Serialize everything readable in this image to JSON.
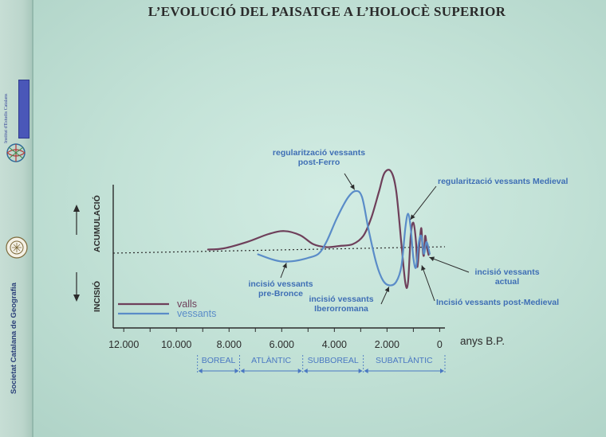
{
  "title": "L’EVOLUCIÓ DEL PAISATGE A L’HOLOCÈ SUPERIOR",
  "sidebar": {
    "society": "Societat Catalana de Geografia"
  },
  "colors": {
    "valls": "#6e3f5a",
    "vessants": "#5a8cc8",
    "axis": "#2b2b2b",
    "annotation": "#3f6fb5",
    "periods": "#4a78c2"
  },
  "chart_data": {
    "type": "line",
    "xlabel": "anys B.P.",
    "x_reversed": true,
    "xlim": [
      12400,
      -200
    ],
    "ylim": [
      -1,
      1
    ],
    "y_up_label": "ACUMULACIÓ",
    "y_down_label": "INCISIÓ",
    "x_ticks": [
      {
        "value": 12000,
        "label": "12.000"
      },
      {
        "value": 10000,
        "label": "10.000"
      },
      {
        "value": 8000,
        "label": "8.000"
      },
      {
        "value": 6000,
        "label": "6.000"
      },
      {
        "value": 4000,
        "label": "4.000"
      },
      {
        "value": 2000,
        "label": "2.000"
      },
      {
        "value": 0,
        "label": "0"
      }
    ],
    "series": [
      {
        "name": "valls",
        "color": "#6e3f5a",
        "points": [
          [
            8800,
            0.02
          ],
          [
            8200,
            0.04
          ],
          [
            7300,
            0.15
          ],
          [
            6500,
            0.28
          ],
          [
            5900,
            0.33
          ],
          [
            5300,
            0.26
          ],
          [
            4800,
            0.11
          ],
          [
            4300,
            0.06
          ],
          [
            3800,
            0.08
          ],
          [
            3300,
            0.11
          ],
          [
            2900,
            0.25
          ],
          [
            2600,
            0.55
          ],
          [
            2300,
            1.0
          ],
          [
            2100,
            1.3
          ],
          [
            1850,
            1.33
          ],
          [
            1650,
            1.0
          ],
          [
            1450,
            0.1
          ],
          [
            1300,
            -0.55
          ],
          [
            1200,
            -0.52
          ],
          [
            1100,
            0.25
          ],
          [
            1000,
            0.47
          ],
          [
            900,
            0.15
          ],
          [
            850,
            -0.27
          ],
          [
            780,
            0.05
          ],
          [
            700,
            0.38
          ],
          [
            650,
            0.05
          ],
          [
            600,
            -0.08
          ],
          [
            550,
            0.25
          ],
          [
            480,
            0.05
          ],
          [
            420,
            -0.07
          ]
        ]
      },
      {
        "name": "vessants",
        "color": "#5a8cc8",
        "points": [
          [
            6900,
            -0.06
          ],
          [
            6400,
            -0.14
          ],
          [
            6000,
            -0.18
          ],
          [
            5500,
            -0.17
          ],
          [
            5000,
            -0.12
          ],
          [
            4600,
            -0.05
          ],
          [
            4300,
            0.15
          ],
          [
            3900,
            0.55
          ],
          [
            3500,
            0.88
          ],
          [
            3200,
            1.0
          ],
          [
            2950,
            0.9
          ],
          [
            2700,
            0.35
          ],
          [
            2400,
            -0.22
          ],
          [
            2150,
            -0.5
          ],
          [
            1900,
            -0.58
          ],
          [
            1650,
            -0.52
          ],
          [
            1450,
            -0.25
          ],
          [
            1300,
            0.4
          ],
          [
            1200,
            0.62
          ],
          [
            1100,
            0.38
          ],
          [
            1000,
            -0.12
          ],
          [
            900,
            -0.28
          ],
          [
            800,
            0.12
          ],
          [
            700,
            0.25
          ],
          [
            600,
            -0.05
          ],
          [
            500,
            0.15
          ],
          [
            380,
            -0.05
          ]
        ]
      }
    ],
    "legend": {
      "placement": "bottom-left",
      "entries": [
        {
          "label": "valls",
          "color": "#6e3f5a"
        },
        {
          "label": "vessants",
          "color": "#5a8cc8"
        }
      ]
    },
    "annotations": [
      {
        "id": "reg-postferro",
        "lines": [
          "regularització vessants",
          "post-Ferro"
        ],
        "x": 3200,
        "y": 1.0
      },
      {
        "id": "reg-medieval",
        "lines": [
          "regularització vessants Medieval"
        ],
        "x": 1150,
        "y": 0.5
      },
      {
        "id": "inc-prebronce",
        "lines": [
          "incisió vessants",
          "pre-Bronce"
        ],
        "x": 5800,
        "y": -0.18
      },
      {
        "id": "inc-iberorromana",
        "lines": [
          "incisió vessants",
          "Iberorromana"
        ],
        "x": 1900,
        "y": -0.58
      },
      {
        "id": "inc-actual",
        "lines": [
          "incisió vessants",
          "actual"
        ],
        "x": 450,
        "y": -0.1
      },
      {
        "id": "inc-postmedieval",
        "lines": [
          "Incisió vessants post-Medieval"
        ],
        "x": 700,
        "y": -0.22
      }
    ],
    "periods": [
      {
        "label": "BOREAL",
        "from": 9200,
        "to": 7600
      },
      {
        "label": "ATLÀNTIC",
        "from": 7600,
        "to": 5200
      },
      {
        "label": "SUBBOREAL",
        "from": 5200,
        "to": 2900
      },
      {
        "label": "SUBATLÀNTIC",
        "from": 2900,
        "to": -200
      }
    ]
  }
}
